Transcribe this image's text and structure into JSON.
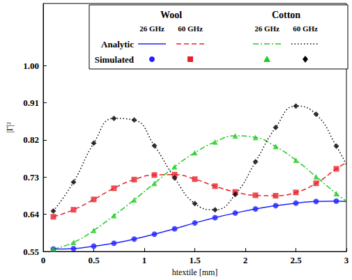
{
  "chart_data": {
    "type": "line",
    "x_label": "htextile [mm]",
    "y_label": "|Γ|²",
    "xlim": [
      0,
      3
    ],
    "xticks": [
      0,
      0.5,
      1,
      1.5,
      2,
      2.5,
      3
    ],
    "ylim": [
      0.55,
      1.15
    ],
    "yticks": [
      0.55,
      0.64,
      0.73,
      0.82,
      0.91,
      {
        "value": 1,
        "label": "1.00"
      }
    ],
    "grid": false,
    "legend": "top",
    "series": [
      {
        "material": "Wool",
        "frequency": "26 GHz",
        "method": "Analytic",
        "type": "line",
        "color": "#1f1fff",
        "line_style": "solid",
        "x": [
          0.1,
          0.3,
          0.5,
          0.7,
          0.9,
          1.1,
          1.3,
          1.5,
          1.7,
          1.9,
          2.1,
          2.3,
          2.5,
          2.7,
          2.9,
          3.0
        ],
        "values": [
          0.556,
          0.557,
          0.563,
          0.57,
          0.58,
          0.592,
          0.605,
          0.619,
          0.632,
          0.643,
          0.653,
          0.661,
          0.667,
          0.671,
          0.672,
          0.671
        ]
      },
      {
        "material": "Wool",
        "frequency": "60 GHz",
        "method": "Analytic",
        "type": "line",
        "color": "#e8202a",
        "line_style": "dashed",
        "x": [
          0.1,
          0.3,
          0.5,
          0.7,
          0.9,
          1.1,
          1.3,
          1.5,
          1.7,
          1.9,
          2.1,
          2.3,
          2.5,
          2.7,
          2.9,
          3.0
        ],
        "values": [
          0.634,
          0.651,
          0.676,
          0.703,
          0.724,
          0.735,
          0.736,
          0.725,
          0.708,
          0.694,
          0.686,
          0.685,
          0.693,
          0.715,
          0.75,
          0.765
        ]
      },
      {
        "material": "Cotton",
        "frequency": "26 GHz",
        "method": "Analytic",
        "type": "line",
        "color": "#1fcc1f",
        "line_style": "dashdot",
        "x": [
          0.1,
          0.3,
          0.5,
          0.7,
          0.9,
          1.1,
          1.3,
          1.5,
          1.7,
          1.9,
          2.1,
          2.3,
          2.5,
          2.7,
          2.9,
          3.0
        ],
        "values": [
          0.556,
          0.572,
          0.601,
          0.637,
          0.675,
          0.715,
          0.755,
          0.789,
          0.815,
          0.83,
          0.826,
          0.804,
          0.771,
          0.731,
          0.69,
          0.672
        ]
      },
      {
        "material": "Cotton",
        "frequency": "60 GHz",
        "method": "Analytic",
        "type": "line",
        "color": "#000000",
        "line_style": "dotted",
        "x": [
          0.1,
          0.3,
          0.5,
          0.7,
          0.9,
          1.1,
          1.3,
          1.5,
          1.7,
          1.9,
          2.1,
          2.3,
          2.5,
          2.7,
          2.9,
          3.0
        ],
        "values": [
          0.648,
          0.718,
          0.812,
          0.872,
          0.868,
          0.806,
          0.728,
          0.666,
          0.651,
          0.688,
          0.767,
          0.85,
          0.902,
          0.882,
          0.805,
          0.76
        ]
      },
      {
        "material": "Wool",
        "frequency": "26 GHz",
        "method": "Simulated",
        "type": "scatter",
        "color": "#1f1fff",
        "marker": "circle",
        "x": [
          0.1,
          0.3,
          0.5,
          0.7,
          0.9,
          1.1,
          1.3,
          1.5,
          1.7,
          1.9,
          2.1,
          2.3,
          2.5,
          2.7,
          2.9
        ],
        "values": [
          0.556,
          0.557,
          0.563,
          0.57,
          0.58,
          0.592,
          0.605,
          0.619,
          0.632,
          0.643,
          0.653,
          0.661,
          0.667,
          0.671,
          0.672
        ]
      },
      {
        "material": "Wool",
        "frequency": "60 GHz",
        "method": "Simulated",
        "type": "scatter",
        "color": "#e8202a",
        "marker": "square",
        "x": [
          0.1,
          0.3,
          0.5,
          0.7,
          0.9,
          1.1,
          1.3,
          1.5,
          1.7,
          1.9,
          2.1,
          2.3,
          2.5,
          2.7,
          2.9
        ],
        "values": [
          0.634,
          0.651,
          0.676,
          0.703,
          0.724,
          0.735,
          0.736,
          0.725,
          0.708,
          0.694,
          0.686,
          0.685,
          0.693,
          0.715,
          0.75
        ]
      },
      {
        "material": "Cotton",
        "frequency": "26 GHz",
        "method": "Simulated",
        "type": "scatter",
        "color": "#1fcc1f",
        "marker": "triangle",
        "x": [
          0.1,
          0.3,
          0.5,
          0.7,
          0.9,
          1.1,
          1.3,
          1.5,
          1.7,
          1.9,
          2.1,
          2.3,
          2.5,
          2.7,
          2.9
        ],
        "values": [
          0.556,
          0.572,
          0.601,
          0.637,
          0.675,
          0.715,
          0.755,
          0.789,
          0.815,
          0.83,
          0.826,
          0.804,
          0.771,
          0.731,
          0.69
        ]
      },
      {
        "material": "Cotton",
        "frequency": "60 GHz",
        "method": "Simulated",
        "type": "scatter",
        "color": "#000000",
        "marker": "diamond",
        "x": [
          0.1,
          0.3,
          0.5,
          0.7,
          0.9,
          1.1,
          1.3,
          1.5,
          1.7,
          1.9,
          2.1,
          2.3,
          2.5,
          2.7,
          2.9
        ],
        "values": [
          0.648,
          0.718,
          0.812,
          0.872,
          0.868,
          0.806,
          0.728,
          0.666,
          0.651,
          0.688,
          0.767,
          0.85,
          0.902,
          0.882,
          0.805
        ]
      }
    ]
  }
}
